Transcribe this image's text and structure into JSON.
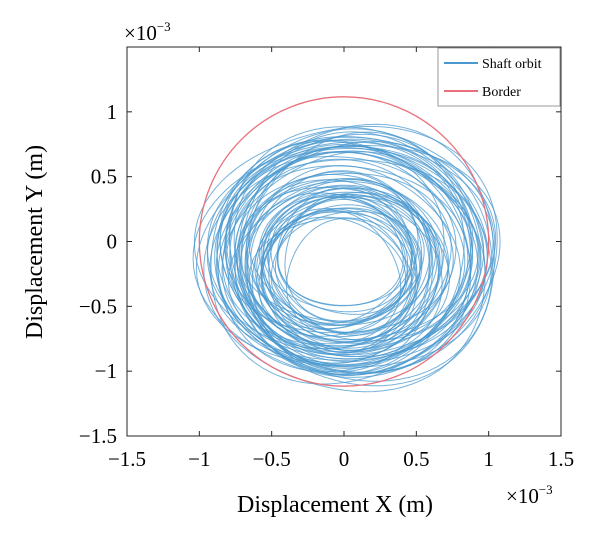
{
  "chart_data": {
    "type": "line",
    "xlabel": "Displacement X (m)",
    "ylabel": "Displacement Y (m)",
    "xlim": [
      -1.5,
      1.5
    ],
    "ylim": [
      -1.5,
      1.5
    ],
    "xticks": [
      "−1.5",
      "−1",
      "−0.5",
      "0",
      "0.5",
      "1",
      "1.5"
    ],
    "yticks": [
      "1",
      "0.5",
      "0",
      "−0.5",
      "−1",
      "−1.5"
    ],
    "x_multiplier": {
      "base": "×10",
      "exponent": "−3"
    },
    "y_multiplier": {
      "base": "×10",
      "exponent": "−3"
    },
    "grid": false,
    "legend_position": "top-right",
    "series": [
      {
        "name": "Shaft orbit",
        "color": "#4a98cf",
        "description_values": {
          "center_x_range": [
            -0.1,
            0.15
          ],
          "center_y_range": [
            -0.25,
            0.05
          ],
          "radius_range": [
            0.45,
            1.0
          ],
          "x_extent": [
            -1.15,
            1.15
          ],
          "y_extent": [
            -1.2,
            0.92
          ]
        }
      },
      {
        "name": "Border",
        "color": "#e8707a",
        "shape": "circle",
        "center": [
          0,
          0
        ],
        "radius": 1.0
      }
    ]
  }
}
